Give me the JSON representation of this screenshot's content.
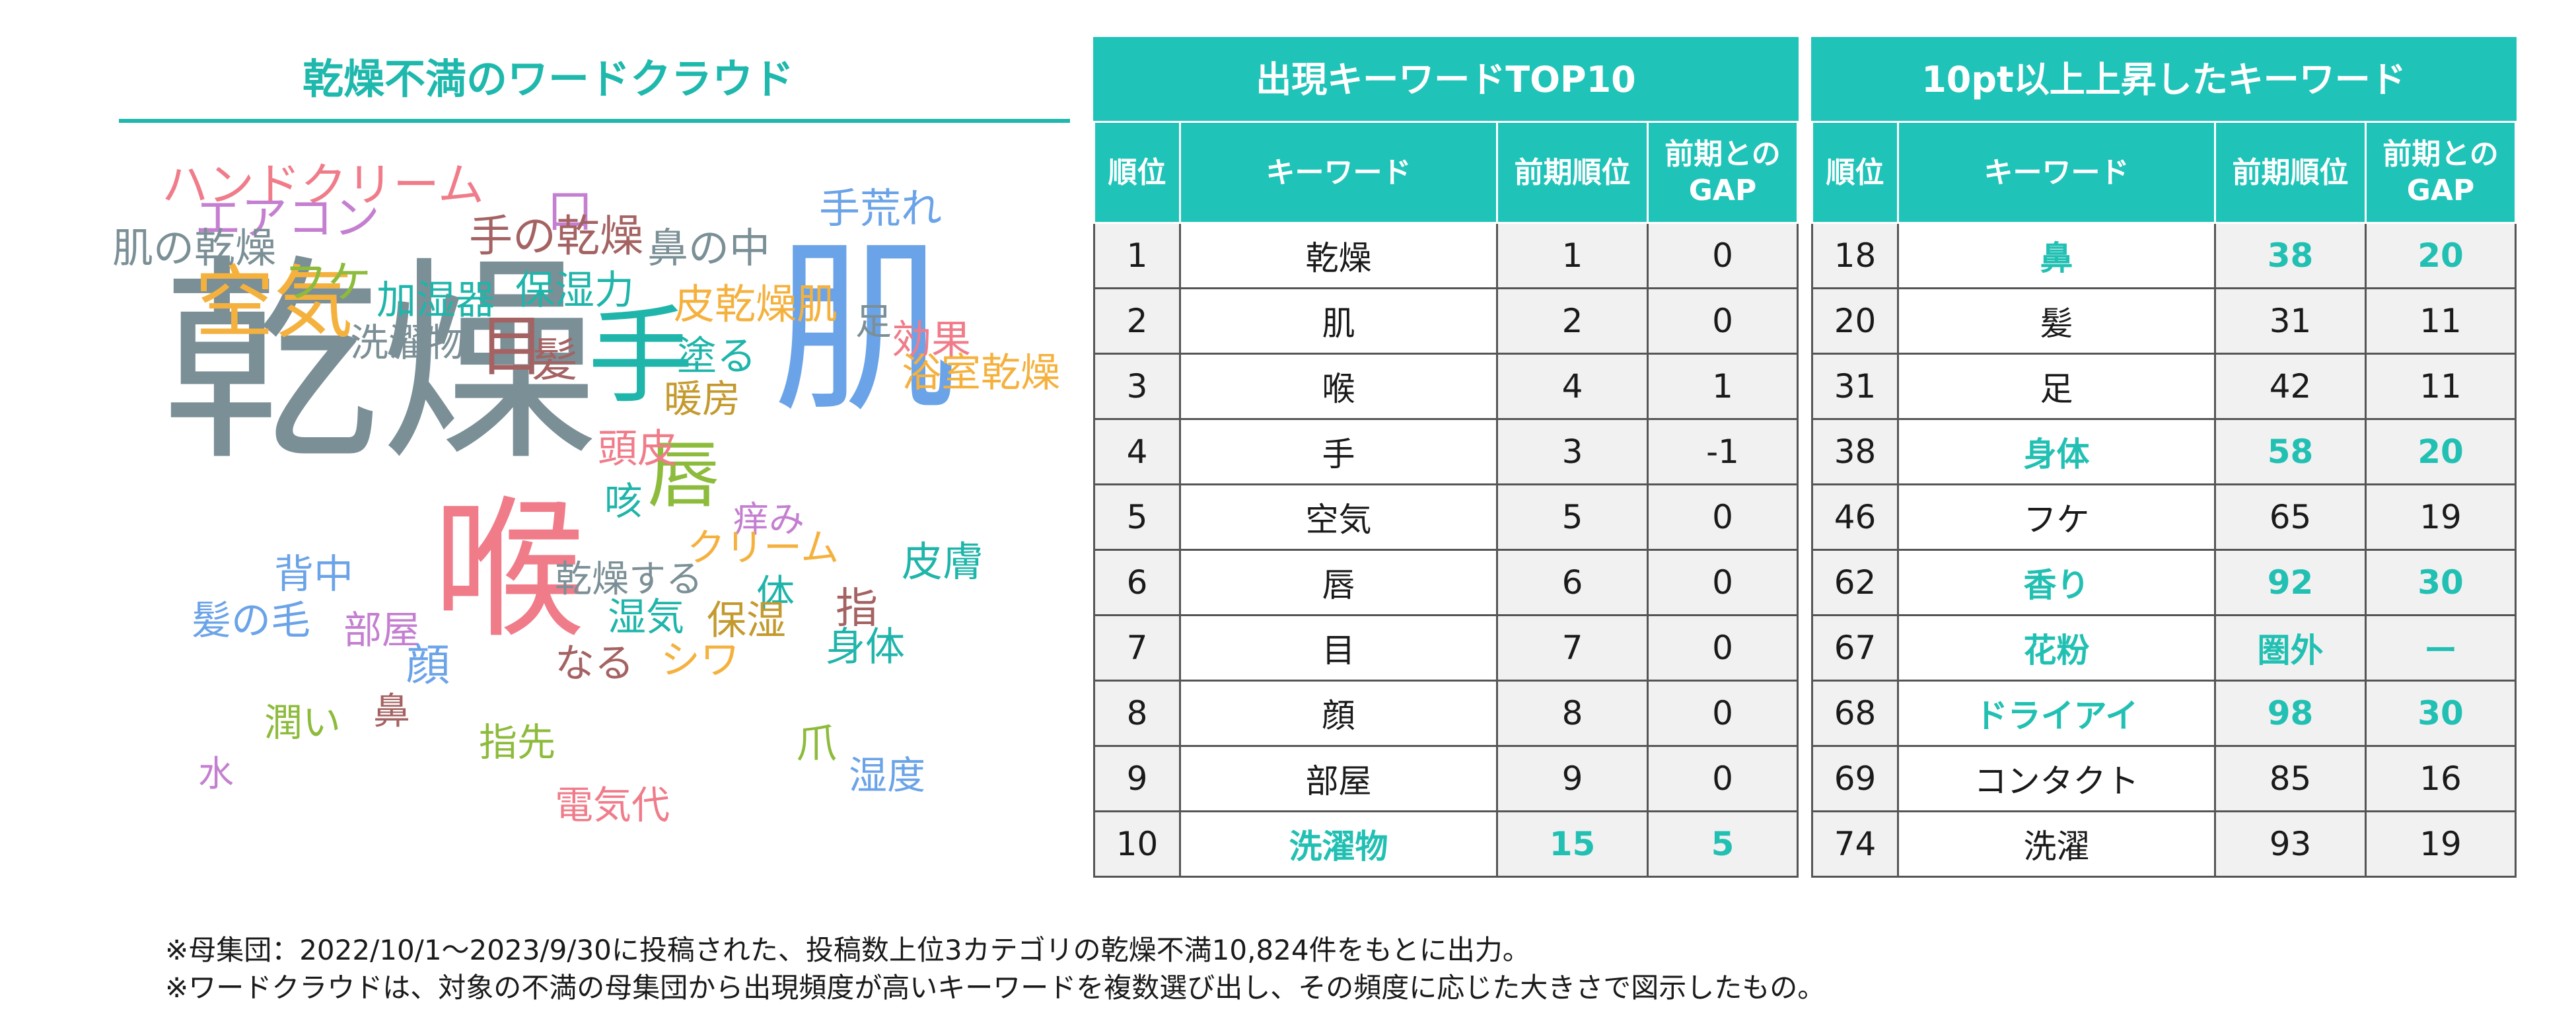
{
  "wordcloud": {
    "title": "乾燥不満のワードクラウド",
    "words": [
      {
        "text": "乾燥",
        "color": "#7b8f96"
      },
      {
        "text": "肌",
        "color": "#6ba3e8"
      },
      {
        "text": "喉",
        "color": "#f07c8a"
      },
      {
        "text": "手",
        "color": "#1fb5aa"
      },
      {
        "text": "空気",
        "color": "#f5b13e"
      },
      {
        "text": "唇",
        "color": "#8dbb3b"
      },
      {
        "text": "目",
        "color": "#a56262"
      },
      {
        "text": "髪",
        "color": "#a56262"
      },
      {
        "text": "ハンドクリーム",
        "color": "#f07c8a"
      },
      {
        "text": "エアコン",
        "color": "#c47fd0"
      },
      {
        "text": "口",
        "color": "#c47fd0"
      },
      {
        "text": "手荒れ",
        "color": "#6ba3e8"
      },
      {
        "text": "手の乾燥",
        "color": "#a56262"
      },
      {
        "text": "鼻の中",
        "color": "#7b8f96"
      },
      {
        "text": "肌の乾燥",
        "color": "#7b8f96"
      },
      {
        "text": "フケ",
        "color": "#8dbb3b"
      },
      {
        "text": "加湿器",
        "color": "#1fb5aa"
      },
      {
        "text": "保湿力",
        "color": "#1fb5aa"
      },
      {
        "text": "皮乾燥肌",
        "color": "#f5b13e"
      },
      {
        "text": "足",
        "color": "#7b8f96"
      },
      {
        "text": "効果",
        "color": "#f07c8a"
      },
      {
        "text": "洗濯物",
        "color": "#7b8f96"
      },
      {
        "text": "塗る",
        "color": "#1fb5aa"
      },
      {
        "text": "浴室乾燥",
        "color": "#f5b13e"
      },
      {
        "text": "暖房",
        "color": "#c49a2e"
      },
      {
        "text": "頭皮",
        "color": "#f07c8a"
      },
      {
        "text": "咳",
        "color": "#1fb5aa"
      },
      {
        "text": "痒み",
        "color": "#c47fd0"
      },
      {
        "text": "クリーム",
        "color": "#f5b13e"
      },
      {
        "text": "皮膚",
        "color": "#1fb5aa"
      },
      {
        "text": "背中",
        "color": "#6ba3e8"
      },
      {
        "text": "乾燥する",
        "color": "#7b8f96"
      },
      {
        "text": "体",
        "color": "#1fb5aa"
      },
      {
        "text": "髪の毛",
        "color": "#6ba3e8"
      },
      {
        "text": "部屋",
        "color": "#c47fd0"
      },
      {
        "text": "湿気",
        "color": "#1fb5aa"
      },
      {
        "text": "保湿",
        "color": "#c49a2e"
      },
      {
        "text": "指",
        "color": "#a56262"
      },
      {
        "text": "身体",
        "color": "#1fb5aa"
      },
      {
        "text": "顔",
        "color": "#6ba3e8"
      },
      {
        "text": "なる",
        "color": "#a56262"
      },
      {
        "text": "シワ",
        "color": "#f5b13e"
      },
      {
        "text": "潤い",
        "color": "#8dbb3b"
      },
      {
        "text": "鼻",
        "color": "#a56262"
      },
      {
        "text": "指先",
        "color": "#8dbb3b"
      },
      {
        "text": "爪",
        "color": "#8dbb3b"
      },
      {
        "text": "水",
        "color": "#c47fd0"
      },
      {
        "text": "湿度",
        "color": "#6ba3e8"
      },
      {
        "text": "電気代",
        "color": "#f07c8a"
      }
    ]
  },
  "top10": {
    "title": "出現キーワードTOP10",
    "headers": {
      "rank": "順位",
      "keyword": "キーワード",
      "prev": "前期順位",
      "gap": "前期との\nGAP"
    },
    "rows": [
      {
        "rank": "1",
        "keyword": "乾燥",
        "prev": "1",
        "gap": "0",
        "highlight": false
      },
      {
        "rank": "2",
        "keyword": "肌",
        "prev": "2",
        "gap": "0",
        "highlight": false
      },
      {
        "rank": "3",
        "keyword": "喉",
        "prev": "4",
        "gap": "1",
        "highlight": false
      },
      {
        "rank": "4",
        "keyword": "手",
        "prev": "3",
        "gap": "-1",
        "highlight": false
      },
      {
        "rank": "5",
        "keyword": "空気",
        "prev": "5",
        "gap": "0",
        "highlight": false
      },
      {
        "rank": "6",
        "keyword": "唇",
        "prev": "6",
        "gap": "0",
        "highlight": false
      },
      {
        "rank": "7",
        "keyword": "目",
        "prev": "7",
        "gap": "0",
        "highlight": false
      },
      {
        "rank": "8",
        "keyword": "顔",
        "prev": "8",
        "gap": "0",
        "highlight": false
      },
      {
        "rank": "9",
        "keyword": "部屋",
        "prev": "9",
        "gap": "0",
        "highlight": false
      },
      {
        "rank": "10",
        "keyword": "洗濯物",
        "prev": "15",
        "gap": "5",
        "highlight": true
      }
    ]
  },
  "rising": {
    "title": "10pt以上上昇したキーワード",
    "headers": {
      "rank": "順位",
      "keyword": "キーワード",
      "prev": "前期順位",
      "gap": "前期との\nGAP"
    },
    "rows": [
      {
        "rank": "18",
        "keyword": "鼻",
        "prev": "38",
        "gap": "20",
        "highlight": true
      },
      {
        "rank": "20",
        "keyword": "髪",
        "prev": "31",
        "gap": "11",
        "highlight": false
      },
      {
        "rank": "31",
        "keyword": "足",
        "prev": "42",
        "gap": "11",
        "highlight": false
      },
      {
        "rank": "38",
        "keyword": "身体",
        "prev": "58",
        "gap": "20",
        "highlight": true
      },
      {
        "rank": "46",
        "keyword": "フケ",
        "prev": "65",
        "gap": "19",
        "highlight": false
      },
      {
        "rank": "62",
        "keyword": "香り",
        "prev": "92",
        "gap": "30",
        "highlight": true
      },
      {
        "rank": "67",
        "keyword": "花粉",
        "prev": "圏外",
        "gap": "ー",
        "highlight": true
      },
      {
        "rank": "68",
        "keyword": "ドライアイ",
        "prev": "98",
        "gap": "30",
        "highlight": true
      },
      {
        "rank": "69",
        "keyword": "コンタクト",
        "prev": "85",
        "gap": "16",
        "highlight": false
      },
      {
        "rank": "74",
        "keyword": "洗濯",
        "prev": "93",
        "gap": "19",
        "highlight": false
      }
    ]
  },
  "notes": {
    "line1": "※母集団：2022/10/1～2023/9/30に投稿された、投稿数上位3カテゴリの乾燥不満10,824件をもとに出力。",
    "line2": "※ワードクラウドは、対象の不満の母集団から出現頻度が高いキーワードを複数選び出し、その頻度に応じた大きさで図示したもの。"
  }
}
